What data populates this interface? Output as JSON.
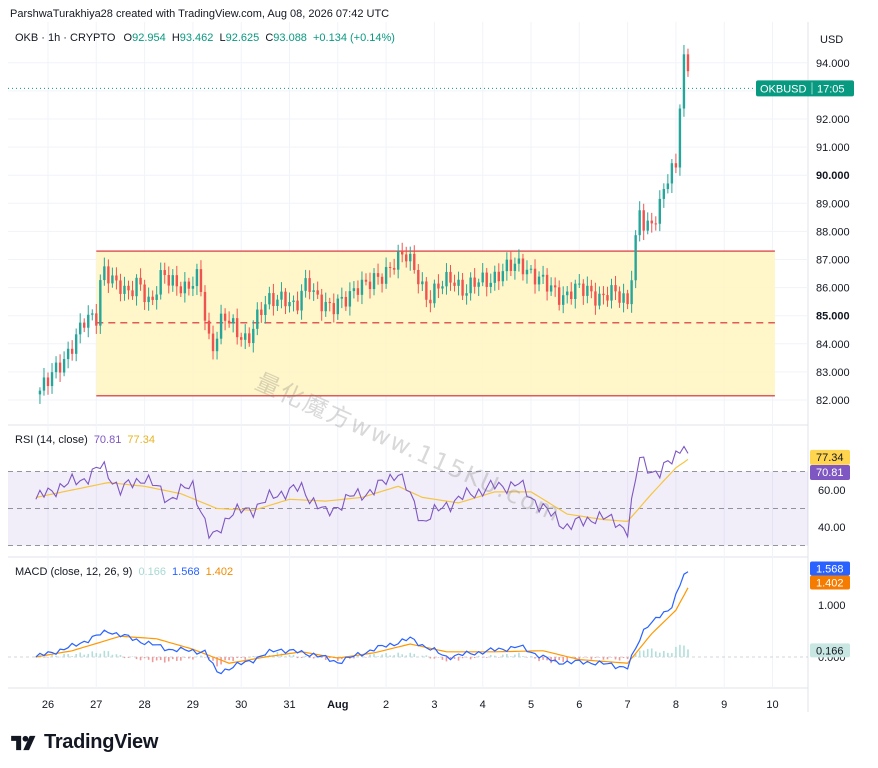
{
  "header": {
    "credit": "ParshwaTurakhiya28 created with TradingView.com, Aug 08, 2026 07:42 UTC"
  },
  "symbol_bar": {
    "symbol": "OKB · 1h · CRYPTO",
    "o_label": "O",
    "o_value": "92.954",
    "h_label": "H",
    "h_value": "93.462",
    "l_label": "L",
    "l_value": "92.625",
    "c_label": "C",
    "c_value": "93.088",
    "change": "+0.134 (+0.14%)"
  },
  "price_scale": {
    "currency": "USD",
    "ticker_label": "OKBUSD",
    "countdown": "17:05"
  },
  "rsi_legend": {
    "label": "RSI (14, close)",
    "v1": "70.81",
    "v2": "77.34"
  },
  "macd_legend": {
    "label": "MACD (close, 12, 26, 9)",
    "v1": "0.166",
    "v2": "1.568",
    "v3": "1.402"
  },
  "watermark": "量化魔方www.115KU.com",
  "brand": "TradingView",
  "colors": {
    "up": "#26a69a",
    "down": "#ef5350",
    "range_fill": "#fff5c4",
    "range_line": "#e05a5a",
    "rsi": "#7e57c2",
    "rsi_ma": "#f5c542",
    "macd": "#2962ff",
    "signal": "#ff9800",
    "hist_up": "#b2dfdb",
    "hist_down": "#ef9a9a",
    "last_price_badge": "#089981"
  },
  "chart_data": [
    {
      "type": "candlestick",
      "title": "OKB · 1h · CRYPTO",
      "ylabel": "USD",
      "x_ticks": [
        "26",
        "27",
        "28",
        "29",
        "30",
        "31",
        "Aug",
        "2",
        "3",
        "4",
        "5",
        "6",
        "7",
        "8",
        "9",
        "10"
      ],
      "y_ticks": [
        "82.000",
        "83.000",
        "84.000",
        "85.000",
        "86.000",
        "87.000",
        "88.000",
        "89.000",
        "90.000",
        "91.000",
        "92.000",
        "93.000",
        "94.000"
      ],
      "ylim": [
        81.7,
        95.1
      ],
      "last_price": 93.088,
      "range_box": {
        "top": 87.3,
        "bottom": 82.15,
        "mid": 84.75,
        "from": "Jul 27",
        "to": "Aug 10"
      },
      "close_path": [
        [
          "Jul 25 18:00",
          82.2
        ],
        [
          "Jul 26 00:00",
          82.6
        ],
        [
          "Jul 26 06:00",
          83.3
        ],
        [
          "Jul 26 12:00",
          84.0
        ],
        [
          "Jul 26 18:00",
          84.7
        ],
        [
          "Jul 27 00:00",
          85.0
        ],
        [
          "Jul 27 03:00",
          86.9
        ],
        [
          "Jul 27 09:00",
          86.1
        ],
        [
          "Jul 27 15:00",
          85.7
        ],
        [
          "Jul 27 21:00",
          86.4
        ],
        [
          "Jul 28 03:00",
          85.2
        ],
        [
          "Jul 28 09:00",
          86.5
        ],
        [
          "Jul 28 15:00",
          86.3
        ],
        [
          "Jul 28 21:00",
          85.8
        ],
        [
          "Jul 29 03:00",
          86.4
        ],
        [
          "Jul 29 09:00",
          83.8
        ],
        [
          "Jul 29 15:00",
          84.9
        ],
        [
          "Jul 29 21:00",
          84.5
        ],
        [
          "Jul 30 03:00",
          84.2
        ],
        [
          "Jul 30 09:00",
          85.0
        ],
        [
          "Jul 30 15:00",
          85.6
        ],
        [
          "Jul 30 21:00",
          85.8
        ],
        [
          "Jul 31 03:00",
          85.1
        ],
        [
          "Jul 31 09:00",
          86.3
        ],
        [
          "Jul 31 15:00",
          85.6
        ],
        [
          "Jul 31 21:00",
          85.1
        ],
        [
          "Aug 1 03:00",
          85.6
        ],
        [
          "Aug 1 09:00",
          86.1
        ],
        [
          "Aug 1 15:00",
          86.0
        ],
        [
          "Aug 1 21:00",
          86.4
        ],
        [
          "Aug 2 03:00",
          86.9
        ],
        [
          "Aug 2 09:00",
          87.1
        ],
        [
          "Aug 2 15:00",
          86.6
        ],
        [
          "Aug 2 21:00",
          85.6
        ],
        [
          "Aug 3 03:00",
          86.0
        ],
        [
          "Aug 3 09:00",
          86.4
        ],
        [
          "Aug 3 15:00",
          85.9
        ],
        [
          "Aug 3 21:00",
          86.1
        ],
        [
          "Aug 4 03:00",
          86.3
        ],
        [
          "Aug 4 09:00",
          86.6
        ],
        [
          "Aug 4 15:00",
          86.7
        ],
        [
          "Aug 4 21:00",
          86.8
        ],
        [
          "Aug 5 03:00",
          86.4
        ],
        [
          "Aug 5 09:00",
          85.9
        ],
        [
          "Aug 5 15:00",
          85.7
        ],
        [
          "Aug 5 21:00",
          86.0
        ],
        [
          "Aug 6 03:00",
          85.8
        ],
        [
          "Aug 6 09:00",
          85.7
        ],
        [
          "Aug 6 15:00",
          85.9
        ],
        [
          "Aug 6 21:00",
          85.5
        ],
        [
          "Aug 7 00:00",
          85.4
        ],
        [
          "Aug 7 03:00",
          87.2
        ],
        [
          "Aug 7 06:00",
          88.9
        ],
        [
          "Aug 7 09:00",
          88.0
        ],
        [
          "Aug 7 15:00",
          88.4
        ],
        [
          "Aug 7 18:00",
          89.6
        ],
        [
          "Aug 7 21:00",
          90.2
        ],
        [
          "Aug 8 00:00",
          90.5
        ],
        [
          "Aug 8 03:00",
          93.6
        ],
        [
          "Aug 8 05:00",
          94.3
        ],
        [
          "Aug 8 07:00",
          93.088
        ]
      ]
    },
    {
      "type": "line",
      "title": "RSI (14, close)",
      "y_ticks": [
        "40.00",
        "60.00"
      ],
      "ylim": [
        27,
        88
      ],
      "bands": [
        70,
        50,
        30
      ],
      "last_values": {
        "rsi": 70.81,
        "rsi_ma": 77.34
      },
      "series": [
        {
          "name": "RSI",
          "points": [
            [
              "Jul 25 18:00",
              55
            ],
            [
              "Jul 26 06:00",
              62
            ],
            [
              "Jul 26 18:00",
              66
            ],
            [
              "Jul 27 03:00",
              73
            ],
            [
              "Jul 27 12:00",
              60
            ],
            [
              "Jul 28 00:00",
              67
            ],
            [
              "Jul 28 12:00",
              55
            ],
            [
              "Jul 29 00:00",
              63
            ],
            [
              "Jul 29 09:00",
              32
            ],
            [
              "Jul 29 18:00",
              47
            ],
            [
              "Jul 30 06:00",
              50
            ],
            [
              "Jul 30 18:00",
              58
            ],
            [
              "Jul 31 06:00",
              61
            ],
            [
              "Jul 31 18:00",
              47
            ],
            [
              "Aug 1 06:00",
              56
            ],
            [
              "Aug 1 18:00",
              60
            ],
            [
              "Aug 2 06:00",
              70
            ],
            [
              "Aug 2 18:00",
              43
            ],
            [
              "Aug 3 06:00",
              52
            ],
            [
              "Aug 3 18:00",
              58
            ],
            [
              "Aug 4 06:00",
              62
            ],
            [
              "Aug 4 18:00",
              63
            ],
            [
              "Aug 5 06:00",
              50
            ],
            [
              "Aug 5 18:00",
              40
            ],
            [
              "Aug 6 06:00",
              45
            ],
            [
              "Aug 6 18:00",
              44
            ],
            [
              "Aug 7 00:00",
              37
            ],
            [
              "Aug 7 06:00",
              79
            ],
            [
              "Aug 7 15:00",
              66
            ],
            [
              "Aug 7 21:00",
              77
            ],
            [
              "Aug 8 04:00",
              84
            ],
            [
              "Aug 8 07:00",
              70.81
            ]
          ]
        },
        {
          "name": "RSI-based MA",
          "points": [
            [
              "Jul 25 18:00",
              56
            ],
            [
              "Jul 26 12:00",
              60
            ],
            [
              "Jul 27 06:00",
              64
            ],
            [
              "Jul 28 00:00",
              62
            ],
            [
              "Jul 28 18:00",
              58
            ],
            [
              "Jul 29 12:00",
              50
            ],
            [
              "Jul 30 06:00",
              49
            ],
            [
              "Jul 31 00:00",
              55
            ],
            [
              "Jul 31 18:00",
              54
            ],
            [
              "Aug 1 12:00",
              56
            ],
            [
              "Aug 2 06:00",
              62
            ],
            [
              "Aug 2 18:00",
              56
            ],
            [
              "Aug 3 12:00",
              53
            ],
            [
              "Aug 4 06:00",
              59
            ],
            [
              "Aug 5 00:00",
              59
            ],
            [
              "Aug 5 18:00",
              47
            ],
            [
              "Aug 6 12:00",
              44
            ],
            [
              "Aug 7 00:00",
              43
            ],
            [
              "Aug 7 12:00",
              58
            ],
            [
              "Aug 8 00:00",
              72
            ],
            [
              "Aug 8 07:00",
              77.34
            ]
          ]
        }
      ]
    },
    {
      "type": "line",
      "title": "MACD (close, 12, 26, 9)",
      "y_ticks": [
        "0.000",
        "1.000"
      ],
      "ylim": [
        -0.4,
        1.9
      ],
      "last_values": {
        "histogram": 0.166,
        "macd": 1.568,
        "signal": 1.402
      },
      "series": [
        {
          "name": "MACD",
          "points": [
            [
              "Jul 25 18:00",
              0.0
            ],
            [
              "Jul 26 12:00",
              0.2
            ],
            [
              "Jul 27 06:00",
              0.5
            ],
            [
              "Jul 27 18:00",
              0.35
            ],
            [
              "Jul 28 12:00",
              0.15
            ],
            [
              "Jul 29 06:00",
              0.1
            ],
            [
              "Jul 29 12:00",
              -0.3
            ],
            [
              "Jul 30 06:00",
              -0.05
            ],
            [
              "Jul 30 18:00",
              0.15
            ],
            [
              "Jul 31 12:00",
              0.05
            ],
            [
              "Aug 1 00:00",
              -0.1
            ],
            [
              "Aug 1 18:00",
              0.15
            ],
            [
              "Aug 2 12:00",
              0.35
            ],
            [
              "Aug 3 06:00",
              0.0
            ],
            [
              "Aug 4 00:00",
              0.1
            ],
            [
              "Aug 4 18:00",
              0.2
            ],
            [
              "Aug 5 12:00",
              -0.1
            ],
            [
              "Aug 6 06:00",
              -0.1
            ],
            [
              "Aug 7 00:00",
              -0.2
            ],
            [
              "Aug 7 09:00",
              0.6
            ],
            [
              "Aug 7 21:00",
              0.9
            ],
            [
              "Aug 8 04:00",
              1.6
            ],
            [
              "Aug 8 07:00",
              1.568
            ]
          ]
        },
        {
          "name": "Signal",
          "points": [
            [
              "Jul 25 18:00",
              0.0
            ],
            [
              "Jul 26 12:00",
              0.12
            ],
            [
              "Jul 27 12:00",
              0.4
            ],
            [
              "Jul 28 06:00",
              0.35
            ],
            [
              "Jul 29 00:00",
              0.15
            ],
            [
              "Jul 29 18:00",
              -0.12
            ],
            [
              "Jul 30 12:00",
              0.0
            ],
            [
              "Jul 31 06:00",
              0.1
            ],
            [
              "Aug 1 00:00",
              -0.02
            ],
            [
              "Aug 1 18:00",
              0.08
            ],
            [
              "Aug 2 12:00",
              0.25
            ],
            [
              "Aug 3 06:00",
              0.1
            ],
            [
              "Aug 4 06:00",
              0.1
            ],
            [
              "Aug 5 06:00",
              0.12
            ],
            [
              "Aug 6 00:00",
              -0.05
            ],
            [
              "Aug 7 00:00",
              -0.12
            ],
            [
              "Aug 7 12:00",
              0.45
            ],
            [
              "Aug 8 00:00",
              0.9
            ],
            [
              "Aug 8 07:00",
              1.402
            ]
          ]
        }
      ]
    }
  ]
}
